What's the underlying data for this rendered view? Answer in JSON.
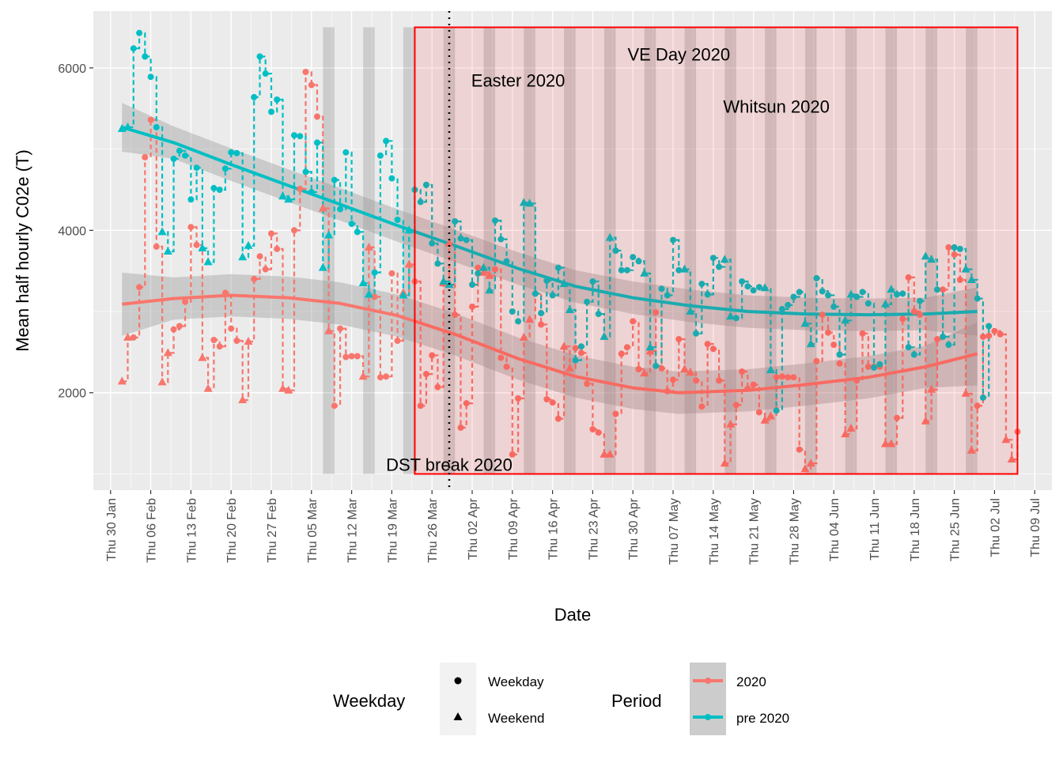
{
  "chart_data": {
    "type": "line",
    "xlabel": "Date",
    "ylabel": "Mean half hourly C02e (T)",
    "xlim": [
      "2020-01-27",
      "2020-07-12"
    ],
    "ylim": [
      800,
      6700
    ],
    "y_ticks": [
      2000,
      4000,
      6000
    ],
    "x_ticks": [
      "2020-01-30",
      "2020-02-06",
      "2020-02-13",
      "2020-02-20",
      "2020-02-27",
      "2020-03-05",
      "2020-03-12",
      "2020-03-19",
      "2020-03-26",
      "2020-04-02",
      "2020-04-09",
      "2020-04-16",
      "2020-04-23",
      "2020-04-30",
      "2020-05-07",
      "2020-05-14",
      "2020-05-21",
      "2020-05-28",
      "2020-06-04",
      "2020-06-11",
      "2020-06-18",
      "2020-06-25",
      "2020-07-02",
      "2020-07-09"
    ],
    "x_tick_labels": [
      "Thu 30 Jan",
      "Thu 06 Feb",
      "Thu 13 Feb",
      "Thu 20 Feb",
      "Thu 27 Feb",
      "Thu 05 Mar",
      "Thu 12 Mar",
      "Thu 19 Mar",
      "Thu 26 Mar",
      "Thu 02 Apr",
      "Thu 09 Apr",
      "Thu 16 Apr",
      "Thu 23 Apr",
      "Thu 30 Apr",
      "Thu 07 May",
      "Thu 14 May",
      "Thu 21 May",
      "Thu 28 May",
      "Thu 04 Jun",
      "Thu 11 Jun",
      "Thu 18 Jun",
      "Thu 25 Jun",
      "Thu 02 Jul",
      "Thu 09 Jul"
    ],
    "grid": true,
    "legend_position": "bottom",
    "legends": {
      "shape": {
        "title": "Weekday",
        "entries": [
          "Weekday",
          "Weekend"
        ]
      },
      "color": {
        "title": "Period",
        "entries": [
          "2020",
          "pre 2020"
        ]
      }
    },
    "colors": {
      "2020": "#F8766D",
      "pre 2020": "#00BFC4",
      "highlight": "#FF0000",
      "panel": "#EBEBEB"
    },
    "weekend_start_dates": [
      "2020-03-07",
      "2020-03-14",
      "2020-03-21",
      "2020-03-28",
      "2020-04-04",
      "2020-04-11",
      "2020-04-18",
      "2020-04-25",
      "2020-05-02",
      "2020-05-09",
      "2020-05-16",
      "2020-05-23",
      "2020-05-30",
      "2020-06-06",
      "2020-06-13",
      "2020-06-20",
      "2020-06-27"
    ],
    "highlight_period": {
      "x": [
        "2020-03-23",
        "2020-07-06"
      ],
      "y": [
        1000,
        6500
      ]
    },
    "vline": {
      "x": "2020-03-29",
      "style": "dotted"
    },
    "annotations": [
      {
        "text": "DST break 2020",
        "x": "2020-03-29",
        "y": 1040
      },
      {
        "text": "Easter 2020",
        "x": "2020-04-10",
        "y": 5770
      },
      {
        "text": "VE Day 2020",
        "x": "2020-05-08",
        "y": 6090
      },
      {
        "text": "Whitsun 2020",
        "x": "2020-05-25",
        "y": 5450
      }
    ],
    "series": [
      {
        "name": "2020",
        "start_date": "2020-02-01",
        "values": [
          2140,
          2680,
          2680,
          3300,
          4900,
          5360,
          3800,
          2130,
          2490,
          2780,
          2820,
          3120,
          4040,
          3820,
          2430,
          2050,
          2650,
          2570,
          3230,
          2790,
          2640,
          1910,
          2630,
          3400,
          3680,
          3520,
          3960,
          3770,
          2050,
          2030,
          4000,
          4510,
          5950,
          5790,
          5400,
          4270,
          2760,
          1840,
          2790,
          2440,
          2450,
          2450,
          2200,
          3790,
          3180,
          2190,
          2200,
          3470,
          2640,
          3230,
          3580,
          3370,
          1840,
          2230,
          2460,
          2070,
          3350,
          3840,
          2960,
          1570,
          1870,
          3060,
          3540,
          3480,
          3440,
          3520,
          2430,
          2320,
          1240,
          1930,
          2680,
          2900,
          3220,
          2840,
          1920,
          1880,
          1680,
          2570,
          2300,
          2550,
          2490,
          2110,
          1550,
          1510,
          1240,
          1240,
          1740,
          2480,
          2560,
          2880,
          2290,
          2240,
          2510,
          2990,
          2300,
          2020,
          2160,
          2660,
          2290,
          2250,
          2150,
          1830,
          2600,
          2540,
          2150,
          1130,
          1610,
          1850,
          2260,
          2050,
          2100,
          1760,
          1660,
          1710,
          2190,
          2200,
          2190,
          2190,
          1300,
          1060,
          1130,
          2390,
          2960,
          2740,
          2590,
          2360,
          1490,
          1560,
          2150,
          2730,
          2320,
          2320,
          2320,
          1370,
          1370,
          1690,
          2910,
          3420,
          3000,
          2960,
          1650,
          2040,
          2660,
          3270,
          3790,
          3700,
          3390,
          1990,
          1290,
          1840,
          2690,
          2700,
          2760,
          2720,
          1420,
          1180,
          1520
        ]
      },
      {
        "name": "pre 2020",
        "start_date": "2020-02-01",
        "values": [
          5250,
          5270,
          6240,
          6430,
          6140,
          5890,
          5270,
          3980,
          3740,
          4880,
          4980,
          4920,
          4380,
          4770,
          3780,
          3610,
          4520,
          4500,
          4760,
          4960,
          4950,
          3670,
          3810,
          5640,
          6140,
          5930,
          5460,
          5610,
          4420,
          4380,
          5170,
          5160,
          4720,
          4470,
          5080,
          3540,
          3940,
          4620,
          4260,
          4960,
          4080,
          3980,
          3350,
          3210,
          3480,
          4920,
          5100,
          4640,
          4130,
          3200,
          4000,
          4500,
          4350,
          4560,
          3840,
          3590,
          3370,
          3330,
          4110,
          3900,
          3880,
          3330,
          3470,
          3540,
          3260,
          4120,
          3890,
          3620,
          3000,
          2880,
          4340,
          4330,
          3220,
          2980,
          3380,
          3200,
          3540,
          3340,
          3020,
          2400,
          2570,
          3120,
          3370,
          2970,
          2690,
          3910,
          3750,
          3510,
          3510,
          3670,
          3620,
          3470,
          2560,
          2330,
          3280,
          3200,
          3880,
          3510,
          3520,
          3000,
          2730,
          3340,
          3210,
          3660,
          3550,
          3640,
          2940,
          2920,
          3370,
          3310,
          3260,
          3300,
          3290,
          2280,
          1780,
          3030,
          3080,
          3180,
          3240,
          2850,
          2600,
          3410,
          3250,
          3200,
          3060,
          2470,
          2890,
          3210,
          3180,
          3240,
          3100,
          2310,
          2350,
          3090,
          3270,
          3210,
          3220,
          2560,
          2470,
          3130,
          3680,
          3640,
          3270,
          2690,
          2590,
          3790,
          3770,
          3520,
          3390,
          3160,
          1940,
          2820
        ]
      },
      {
        "name": "2020 trend",
        "x": [
          "2020-02-01",
          "2020-02-10",
          "2020-02-20",
          "2020-03-01",
          "2020-03-10",
          "2020-03-20",
          "2020-03-30",
          "2020-04-10",
          "2020-04-20",
          "2020-04-30",
          "2020-05-08",
          "2020-05-20",
          "2020-05-30",
          "2020-06-10",
          "2020-06-20",
          "2020-06-29"
        ],
        "values": [
          3090,
          3160,
          3200,
          3170,
          3100,
          2950,
          2720,
          2420,
          2200,
          2060,
          2000,
          2030,
          2100,
          2190,
          2320,
          2480
        ]
      },
      {
        "name": "pre 2020 trend",
        "x": [
          "2020-02-01",
          "2020-02-10",
          "2020-02-20",
          "2020-03-01",
          "2020-03-10",
          "2020-03-20",
          "2020-03-30",
          "2020-04-10",
          "2020-04-20",
          "2020-04-30",
          "2020-05-10",
          "2020-05-20",
          "2020-05-30",
          "2020-06-10",
          "2020-06-20",
          "2020-06-29"
        ],
        "values": [
          5270,
          5080,
          4810,
          4550,
          4320,
          4060,
          3810,
          3530,
          3310,
          3170,
          3070,
          3000,
          2970,
          2960,
          2970,
          3000
        ]
      }
    ]
  }
}
